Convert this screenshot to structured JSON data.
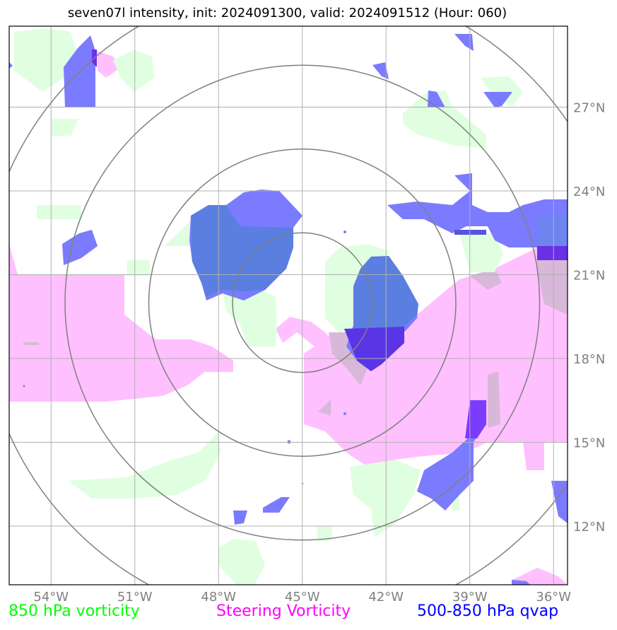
{
  "title": "seven07l intensity, init: 2024091300, valid: 2024091512 (Hour: 060)",
  "lon_ticks": [
    "54°W",
    "51°W",
    "48°W",
    "45°W",
    "42°W",
    "39°W",
    "36°W"
  ],
  "lat_ticks": [
    "27°N",
    "24°N",
    "21°N",
    "18°N",
    "15°N",
    "12°N"
  ],
  "legend": {
    "vorticity_850": "850 hPa vorticity",
    "steering": "Steering Vorticity",
    "qvap": "500-850 hPa qvap"
  },
  "colors": {
    "vorticity_850": "#00ff00",
    "steering": "#ff00ff",
    "qvap": "#0000ff",
    "vorticity_fill": "#e0ffe0",
    "steering_fill": "#ffc0ff",
    "qvap_fill": "#7b7bff",
    "range_rings": "#808080"
  },
  "map": {
    "lon_range": [
      -55.5,
      -35.5
    ],
    "lat_range": [
      9.9,
      29.9
    ],
    "center": {
      "lon": -45,
      "lat": 20
    },
    "range_rings_deg": [
      2.5,
      5.5,
      8.5,
      11.5
    ]
  }
}
